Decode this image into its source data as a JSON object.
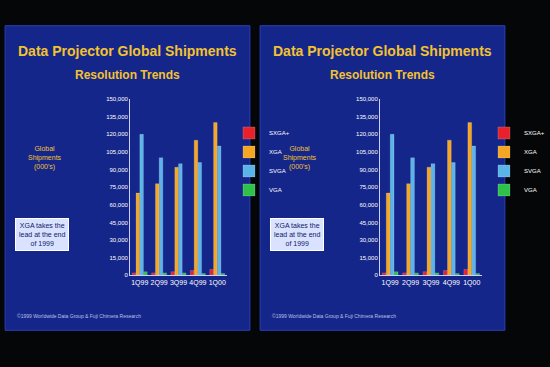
{
  "chart_data": [
    {
      "type": "bar",
      "title": "Data Projector Global Shipments",
      "subtitle": "Resolution Trends",
      "y_label": [
        "Global",
        "Shipments",
        "(000's)"
      ],
      "note": [
        "XGA takes the",
        "lead at the end",
        "of 1999"
      ],
      "source": "©1999 Worldwide Data Group & Fuji Chimera Research",
      "categories": [
        "1Q99",
        "2Q99",
        "3Q99",
        "4Q99",
        "1Q00"
      ],
      "series": [
        {
          "name": "SXGA+",
          "color": "#e8202a",
          "values": [
            2000,
            2000,
            3000,
            4000,
            5000
          ]
        },
        {
          "name": "XGA",
          "color": "#f5a623",
          "values": [
            70000,
            78000,
            92000,
            115000,
            130000
          ]
        },
        {
          "name": "SVGA",
          "color": "#5ab4e8",
          "values": [
            120000,
            100000,
            95000,
            96000,
            110000
          ]
        },
        {
          "name": "VGA",
          "color": "#2ec24a",
          "values": [
            3000,
            2000,
            2000,
            1500,
            1500
          ]
        }
      ],
      "ylim": [
        0,
        150000
      ],
      "yticks": [
        0,
        {
          "value": 15000,
          "label": "15,000"
        },
        {
          "value": 30000,
          "label": "30,000"
        },
        {
          "value": 45000,
          "label": "45,000"
        },
        {
          "value": 60000,
          "label": "60,000"
        },
        {
          "value": 75000,
          "label": "75,000"
        },
        {
          "value": 90000,
          "label": "90,000"
        },
        {
          "value": 105000,
          "label": "105,000"
        },
        {
          "value": 120000,
          "label": "120,000"
        },
        {
          "value": 135000,
          "label": "135,000"
        },
        {
          "value": 150000,
          "label": "150,000"
        }
      ],
      "grid": false,
      "legend": "right",
      "data_labels": false
    },
    {
      "type": "bar",
      "title": "Data Projector Global Shipments",
      "subtitle": "Resolution Trends",
      "y_label": [
        "Global",
        "Shipments",
        "(000's)"
      ],
      "note": [
        "XGA takes the",
        "lead at the end",
        "of 1999"
      ],
      "source": "©1999 Worldwide Data Group & Fuji Chimera Research",
      "categories": [
        "1Q99",
        "2Q99",
        "3Q99",
        "4Q99",
        "1Q00"
      ],
      "series": [
        {
          "name": "SXGA+",
          "color": "#e8202a",
          "values": [
            2000,
            2000,
            3000,
            4000,
            5000
          ]
        },
        {
          "name": "XGA",
          "color": "#f5a623",
          "values": [
            70000,
            78000,
            92000,
            115000,
            130000
          ]
        },
        {
          "name": "SVGA",
          "color": "#5ab4e8",
          "values": [
            120000,
            100000,
            95000,
            96000,
            110000
          ]
        },
        {
          "name": "VGA",
          "color": "#2ec24a",
          "values": [
            3000,
            2000,
            2000,
            1500,
            1500
          ]
        }
      ],
      "ylim": [
        0,
        150000
      ],
      "yticks": [
        0,
        {
          "value": 15000,
          "label": "15,000"
        },
        {
          "value": 30000,
          "label": "30,000"
        },
        {
          "value": 45000,
          "label": "45,000"
        },
        {
          "value": 60000,
          "label": "60,000"
        },
        {
          "value": 75000,
          "label": "75,000"
        },
        {
          "value": 90000,
          "label": "90,000"
        },
        {
          "value": 105000,
          "label": "105,000"
        },
        {
          "value": 120000,
          "label": "120,000"
        },
        {
          "value": 135000,
          "label": "135,000"
        },
        {
          "value": 150000,
          "label": "150,000"
        }
      ],
      "grid": false,
      "legend": "right",
      "data_labels": false
    }
  ]
}
